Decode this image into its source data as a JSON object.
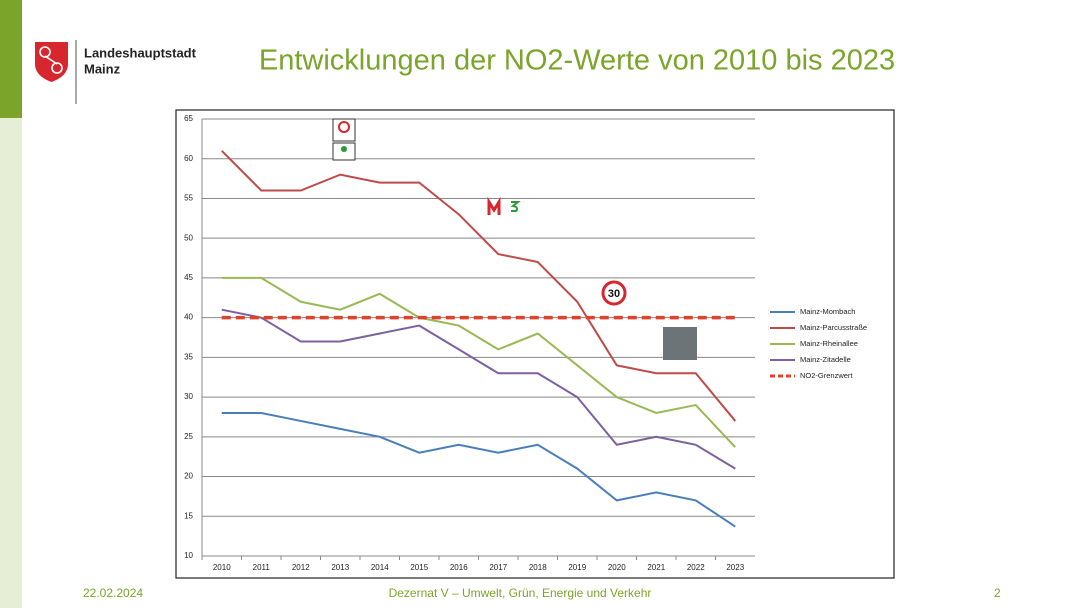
{
  "header": {
    "org_line1": "Landeshauptstadt",
    "org_line2": "Mainz",
    "title": "Entwicklungen der NO2-Werte von 2010 bis 2023"
  },
  "footer": {
    "date": "22.02.2024",
    "department": "Dezernat V – Umwelt, Grün, Energie und Verkehr",
    "page": "2"
  },
  "chart_data": {
    "type": "line",
    "categories": [
      "2010",
      "2011",
      "2012",
      "2013",
      "2014",
      "2015",
      "2016",
      "2017",
      "2018",
      "2019",
      "2020",
      "2021",
      "2022",
      "2023"
    ],
    "series": [
      {
        "name": "Mainz-Mombach",
        "color": "#4a7ebb",
        "values": [
          28,
          28,
          27,
          26,
          25,
          23,
          24,
          23,
          24,
          21,
          17,
          18,
          17,
          13.7
        ]
      },
      {
        "name": "Mainz-Parcusstraße",
        "color": "#be4b48",
        "values": [
          61,
          56,
          56,
          58,
          57,
          57,
          53,
          48,
          47,
          42,
          34,
          33,
          33,
          27
        ]
      },
      {
        "name": "Mainz-Rheinallee",
        "color": "#98b954",
        "values": [
          45,
          45,
          42,
          41,
          43,
          40,
          39,
          36,
          38,
          34,
          30,
          28,
          29,
          23.7
        ]
      },
      {
        "name": "Mainz-Zitadelle",
        "color": "#7d60a0",
        "values": [
          41,
          40,
          37,
          37,
          38,
          39,
          36,
          33,
          33,
          30,
          24,
          25,
          24,
          21
        ]
      },
      {
        "name": "NO2-Grenzwert",
        "color": "#e0412b",
        "dashed": true,
        "values": [
          40,
          40,
          40,
          40,
          40,
          40,
          40,
          40,
          40,
          40,
          40,
          40,
          40,
          40
        ]
      }
    ],
    "ylim": [
      10,
      65
    ],
    "yticks": [
      10,
      15,
      20,
      25,
      30,
      35,
      40,
      45,
      50,
      55,
      60,
      65
    ],
    "grid": true,
    "legend": "right",
    "annotations": [
      "30"
    ]
  }
}
